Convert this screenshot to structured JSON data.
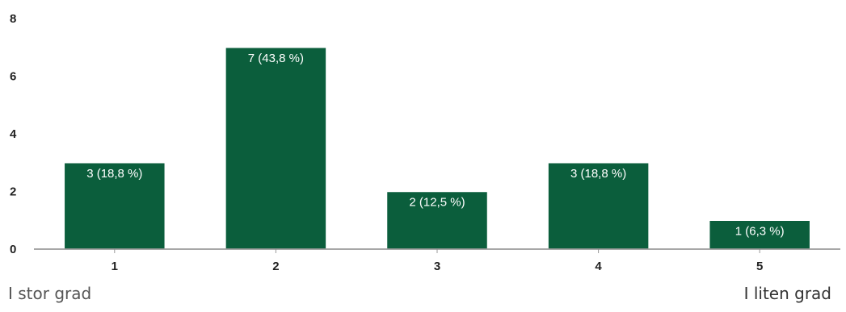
{
  "chart_data": {
    "type": "bar",
    "categories": [
      "1",
      "2",
      "3",
      "4",
      "5"
    ],
    "values": [
      3,
      7,
      2,
      3,
      1
    ],
    "data_labels": [
      "3 (18,8 %)",
      "7 (43,8 %)",
      "2 (12,5 %)",
      "3 (18,8 %)",
      "1 (6,3 %)"
    ],
    "ylim": [
      0,
      8
    ],
    "yticks": [
      0,
      2,
      4,
      6,
      8
    ],
    "grid": false,
    "bar_color": "#0b5e3c"
  },
  "scale_labels": {
    "left": "I stor grad",
    "right": "I liten grad"
  }
}
